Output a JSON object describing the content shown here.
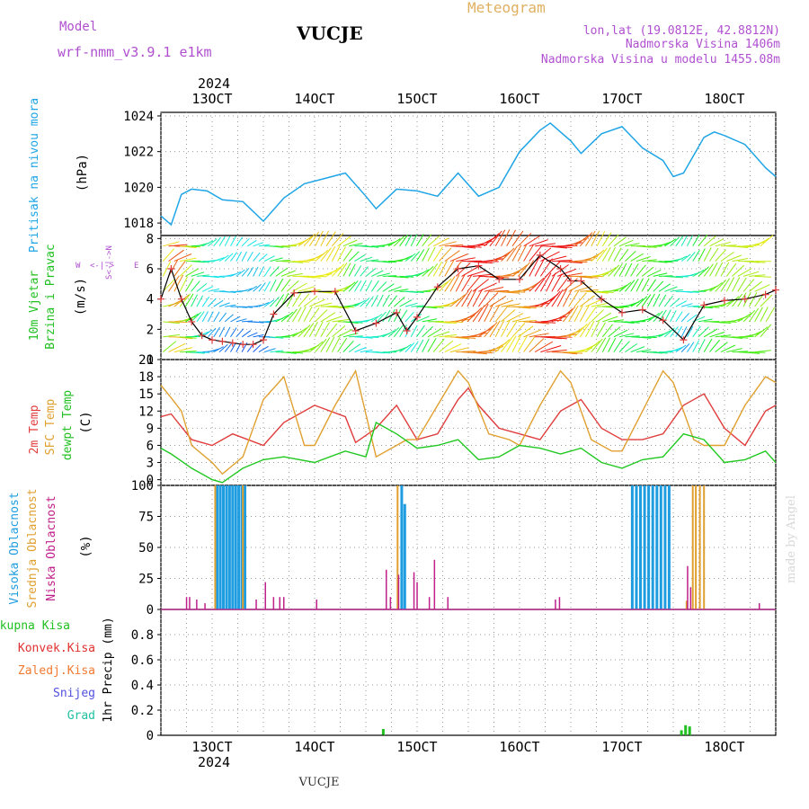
{
  "header": {
    "model_label": "Model",
    "model_name": "wrf-nmm_v3.9.1 e1km",
    "station": "VUCJE",
    "meteogram": "Meteogram",
    "lonlat": "lon,lat (19.0812E, 42.8812N)",
    "altitude": "Nadmorska Visina 1406m",
    "model_altitude": "Nadmorska Visina u modelu 1455.08m"
  },
  "x_axis": {
    "year_top": "2024",
    "year_bottom": "2024",
    "ticks": [
      "13OCT",
      "14OCT",
      "15OCT",
      "16OCT",
      "17OCT",
      "18OCT"
    ],
    "range_days": [
      12.5,
      18.5
    ]
  },
  "footer_station": "VUCJE",
  "watermark": "made by Angel",
  "panels": {
    "pressure": {
      "labels": [
        "Pritisak na nivou mora",
        "(hPa)"
      ],
      "ticks": [
        "1018",
        "1020",
        "1022",
        "1024"
      ]
    },
    "wind": {
      "labels": [
        "10m Vjetar",
        "Brzina i Pravac",
        "(m/s)"
      ],
      "ticks": [
        "0",
        "2",
        "4",
        "6",
        "8"
      ],
      "compass": [
        "N",
        "<",
        "-",
        "|",
        "-",
        ">",
        "S",
        "W",
        "E"
      ]
    },
    "temp": {
      "labels": [
        "2m Temp",
        "SFC Temp",
        "dewpt Temp",
        "(C)"
      ],
      "ticks": [
        "0",
        "3",
        "6",
        "9",
        "12",
        "15",
        "18",
        "21"
      ]
    },
    "cloud": {
      "labels": [
        "Visoka Oblacnost",
        "Srednja Oblacnost",
        "Niska Oblacnost",
        "(%)"
      ],
      "ticks": [
        "0",
        "25",
        "50",
        "75",
        "100"
      ]
    },
    "precip": {
      "labels": [
        "Ukupna Kisa",
        "Konvek.Kisa",
        "Zaledj.Kisa",
        "Snijeg",
        "Grad",
        "1hr Precip (mm)"
      ],
      "ticks": [
        "0",
        "0.2",
        "0.4",
        "0.6",
        "0.8"
      ]
    }
  },
  "colors": {
    "pressure": "#1fa5e6",
    "t2m": "#e03c3c",
    "sfc": "#e0a030",
    "dewpt": "#20c820",
    "high_cloud": "#1e9de0",
    "mid_cloud": "#e0a030",
    "low_cloud": "#c0208a",
    "total_rain": "#20c020",
    "conv_rain": "#e03030",
    "frz_rain": "#f07a30",
    "snow": "#5050e0",
    "hail": "#20c0a0",
    "label_purple": "#b050d0",
    "label_orange": "#e0a040"
  },
  "chart_data": [
    {
      "type": "line",
      "title": "Pritisak na nivou mora",
      "ylabel": "(hPa)",
      "ylim": [
        1017.3,
        1024.2
      ],
      "series": [
        {
          "x": [
            12.5,
            12.6,
            12.7,
            12.8,
            12.95,
            13.1,
            13.3,
            13.5,
            13.7,
            13.9,
            14.1,
            14.3,
            14.5,
            14.6,
            14.8,
            15.0,
            15.2,
            15.4,
            15.6,
            15.8,
            16.0,
            16.1,
            16.2,
            16.3,
            16.5,
            16.6,
            16.8,
            17.0,
            17.2,
            17.4,
            17.5,
            17.6,
            17.8,
            17.9,
            18.0,
            18.2,
            18.4,
            18.5
          ],
          "values": [
            1018.4,
            1017.9,
            1019.6,
            1019.9,
            1019.8,
            1019.3,
            1019.2,
            1018.1,
            1019.4,
            1020.2,
            1020.5,
            1020.8,
            1019.5,
            1018.8,
            1019.9,
            1019.8,
            1019.5,
            1020.8,
            1019.5,
            1020.0,
            1022.0,
            1022.6,
            1023.2,
            1023.6,
            1022.6,
            1021.9,
            1023.0,
            1023.4,
            1022.2,
            1021.5,
            1020.6,
            1020.8,
            1022.8,
            1023.1,
            1022.9,
            1022.4,
            1021.1,
            1020.6
          ]
        }
      ]
    },
    {
      "type": "line",
      "title": "10m Vjetar Brzina i Pravac",
      "ylabel": "(m/s)",
      "ylim": [
        0,
        8.2
      ],
      "series": [
        {
          "x": [
            12.5,
            12.6,
            12.7,
            12.8,
            12.9,
            13.0,
            13.1,
            13.2,
            13.3,
            13.4,
            13.5,
            13.6,
            13.8,
            14.0,
            14.2,
            14.4,
            14.6,
            14.8,
            14.9,
            15.0,
            15.2,
            15.4,
            15.6,
            15.8,
            16.0,
            16.2,
            16.4,
            16.5,
            16.6,
            16.8,
            17.0,
            17.2,
            17.4,
            17.6,
            17.8,
            18.0,
            18.2,
            18.4,
            18.5
          ],
          "values": [
            4.0,
            6.0,
            4.0,
            2.5,
            1.6,
            1.3,
            1.2,
            1.1,
            1.0,
            1.0,
            1.3,
            3.0,
            4.4,
            4.5,
            4.5,
            1.9,
            2.4,
            3.1,
            1.9,
            2.8,
            4.8,
            6.0,
            6.2,
            5.3,
            5.3,
            6.9,
            6.0,
            5.2,
            5.2,
            4.0,
            3.1,
            3.3,
            2.6,
            1.3,
            3.6,
            3.9,
            4.0,
            4.3,
            4.6
          ]
        }
      ]
    },
    {
      "type": "line",
      "title": "Temp",
      "ylabel": "(C)",
      "ylim": [
        -1,
        21
      ],
      "series": [
        {
          "name": "2m Temp",
          "x": [
            12.5,
            12.6,
            12.8,
            13.0,
            13.2,
            13.5,
            13.7,
            14.0,
            14.3,
            14.4,
            14.6,
            14.8,
            15.0,
            15.2,
            15.4,
            15.5,
            15.6,
            15.8,
            16.0,
            16.2,
            16.4,
            16.6,
            16.8,
            17.0,
            17.2,
            17.4,
            17.6,
            17.8,
            18.0,
            18.2,
            18.4,
            18.5
          ],
          "values": [
            11,
            11.5,
            7,
            6,
            8,
            6,
            10,
            13,
            11,
            6.5,
            9,
            13,
            7,
            8,
            14,
            16,
            13,
            9,
            8,
            7,
            12,
            14,
            9,
            7,
            7,
            8,
            13,
            15,
            9,
            6,
            12,
            13
          ]
        },
        {
          "name": "SFC Temp",
          "x": [
            12.5,
            12.6,
            12.7,
            12.8,
            13.0,
            13.1,
            13.3,
            13.5,
            13.7,
            13.9,
            14.0,
            14.2,
            14.4,
            14.6,
            14.9,
            15.0,
            15.2,
            15.4,
            15.5,
            15.7,
            15.9,
            16.0,
            16.2,
            16.4,
            16.5,
            16.7,
            16.9,
            17.0,
            17.2,
            17.4,
            17.5,
            17.7,
            17.8,
            18.0,
            18.2,
            18.4,
            18.5
          ],
          "values": [
            16.5,
            14.3,
            12,
            6,
            3,
            1,
            4,
            14,
            18,
            6,
            6,
            13,
            19,
            4,
            7,
            7,
            13,
            19,
            17,
            8,
            7,
            6,
            13,
            19,
            17,
            7,
            5,
            5,
            12,
            19,
            17,
            7,
            6,
            6,
            13,
            18,
            17
          ]
        },
        {
          "name": "dewpt Temp",
          "x": [
            12.5,
            12.6,
            12.8,
            13.0,
            13.1,
            13.3,
            13.5,
            13.7,
            14.0,
            14.3,
            14.5,
            14.6,
            14.8,
            15.0,
            15.2,
            15.4,
            15.6,
            15.8,
            16.0,
            16.2,
            16.4,
            16.6,
            16.8,
            17.0,
            17.2,
            17.4,
            17.6,
            17.8,
            18.0,
            18.2,
            18.4,
            18.5
          ],
          "values": [
            5.5,
            4.5,
            2,
            0,
            -0.5,
            2,
            3.5,
            4,
            3,
            5,
            4,
            10,
            8,
            5.5,
            6,
            7,
            3.5,
            4,
            6,
            5.5,
            4.5,
            5.5,
            3,
            2,
            3.5,
            4,
            8,
            7,
            3,
            3.5,
            5,
            3
          ]
        }
      ]
    },
    {
      "type": "bar",
      "title": "Oblacnost",
      "ylabel": "(%)",
      "ylim": [
        0,
        100
      ],
      "series": [
        {
          "name": "Visoka Oblacnost",
          "x": [
            13.05,
            13.08,
            13.11,
            13.14,
            13.17,
            13.2,
            13.23,
            13.26,
            13.29,
            13.32,
            14.85,
            14.88,
            17.1,
            17.14,
            17.18,
            17.22,
            17.26,
            17.3,
            17.34,
            17.38,
            17.42,
            17.46
          ],
          "values": [
            100,
            100,
            100,
            100,
            100,
            100,
            100,
            100,
            100,
            100,
            100,
            85,
            100,
            100,
            100,
            100,
            100,
            100,
            100,
            100,
            100,
            100
          ]
        },
        {
          "name": "Srednja Oblacnost",
          "x": [
            13.03,
            13.3,
            14.81,
            17.63,
            17.69,
            17.72,
            17.76,
            17.8
          ],
          "values": [
            100,
            100,
            100,
            7,
            100,
            100,
            100,
            100
          ]
        },
        {
          "name": "Niska Oblacnost",
          "x": [
            12.75,
            12.78,
            12.85,
            12.93,
            13.43,
            13.52,
            13.6,
            13.66,
            13.7,
            14.02,
            14.7,
            14.74,
            14.82,
            14.97,
            15.0,
            15.12,
            15.17,
            15.3,
            16.35,
            16.39,
            17.64,
            17.67,
            18.34
          ],
          "values": [
            10,
            10,
            8,
            5,
            8,
            22,
            10,
            10,
            10,
            8,
            32,
            10,
            28,
            30,
            22,
            10,
            40,
            10,
            8,
            10,
            35,
            18,
            5
          ]
        }
      ]
    },
    {
      "type": "bar",
      "title": "1hr Precip",
      "ylabel": "1hr Precip (mm)",
      "ylim": [
        0,
        1.0
      ],
      "series": [
        {
          "name": "Ukupna Kisa",
          "x": [
            14.67,
            17.58,
            17.62,
            17.66
          ],
          "values": [
            0.05,
            0.04,
            0.08,
            0.07
          ]
        }
      ]
    }
  ]
}
